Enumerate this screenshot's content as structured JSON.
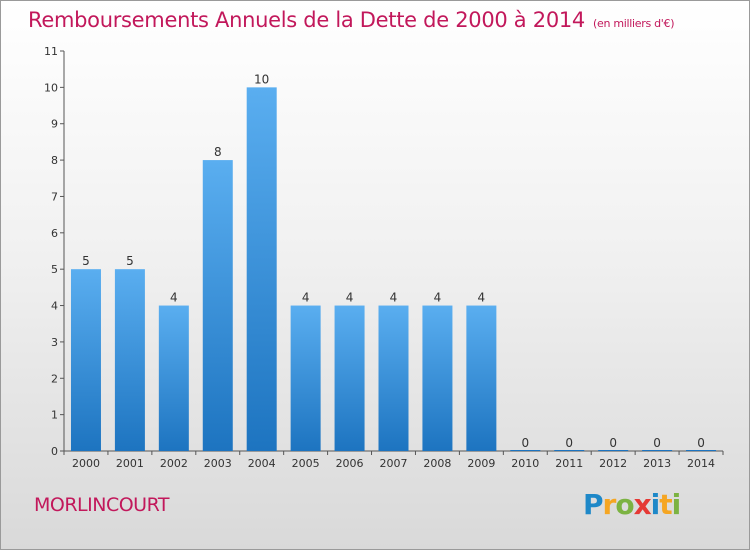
{
  "header": {
    "title": "Remboursements Annuels de la Dette de 2000 à 2014",
    "subtitle": "(en milliers d'€)"
  },
  "footer": {
    "commune": "MORLINCOURT",
    "logo": "Proxiti"
  },
  "colors": {
    "title": "#c2185b",
    "bar_top": "#5aaef0",
    "bar_bottom": "#1d74c0"
  },
  "chart_data": {
    "type": "bar",
    "title": "Remboursements Annuels de la Dette de 2000 à 2014",
    "subtitle": "(en milliers d'€)",
    "categories": [
      "2000",
      "2001",
      "2002",
      "2003",
      "2004",
      "2005",
      "2006",
      "2007",
      "2008",
      "2009",
      "2010",
      "2011",
      "2012",
      "2013",
      "2014"
    ],
    "values": [
      5,
      5,
      4,
      8,
      10,
      4,
      4,
      4,
      4,
      4,
      0,
      0,
      0,
      0,
      0
    ],
    "data_labels": [
      "5",
      "5",
      "4",
      "8",
      "10",
      "4",
      "4",
      "4",
      "4",
      "4",
      "0",
      "0",
      "0",
      "0",
      "0"
    ],
    "yticks": [
      "0",
      "1",
      "2",
      "3",
      "4",
      "5",
      "6",
      "7",
      "8",
      "9",
      "10",
      "11"
    ],
    "ylim": [
      0,
      11
    ],
    "grid": false,
    "legend": "none"
  }
}
